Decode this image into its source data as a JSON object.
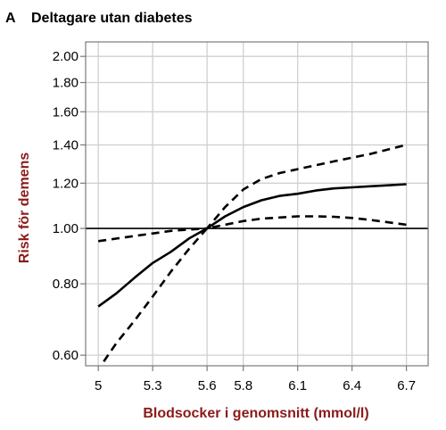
{
  "panel": {
    "letter": "A",
    "title": "Deltagare utan diabetes"
  },
  "colors": {
    "axis_label": "#8b1a1a",
    "line": "#000000",
    "grid": "#d0d0d0",
    "frame": "#7a7a7a"
  },
  "chart_data": {
    "type": "line",
    "title": "Deltagare utan diabetes",
    "xlabel": "Blodsocker i genomsnitt (mmol/l)",
    "ylabel": "Risk för demens",
    "xlim": [
      4.93,
      6.82
    ],
    "ylim": [
      0.575,
      2.12
    ],
    "y_scale": "log",
    "grid": true,
    "x_ticks": [
      5,
      5.3,
      5.6,
      5.8,
      6.1,
      6.4,
      6.7
    ],
    "x_tick_labels": [
      "5",
      "5.3",
      "5.6",
      "5.8",
      "6.1",
      "6.4",
      "6.7"
    ],
    "y_ticks": [
      0.6,
      0.8,
      1.0,
      1.2,
      1.4,
      1.6,
      1.8,
      2.0
    ],
    "y_tick_labels": [
      "0.60",
      "0.80",
      "1.00",
      "1.20",
      "1.40",
      "1.60",
      "1.80",
      "2.00"
    ],
    "reference_line": 1.0,
    "series": [
      {
        "role": "estimate",
        "style": "solid",
        "x": [
          5.0,
          5.1,
          5.2,
          5.3,
          5.4,
          5.5,
          5.6,
          5.7,
          5.8,
          5.9,
          6.0,
          6.1,
          6.2,
          6.3,
          6.4,
          6.5,
          6.6,
          6.7
        ],
        "y": [
          0.73,
          0.77,
          0.82,
          0.87,
          0.91,
          0.96,
          1.0,
          1.05,
          1.09,
          1.12,
          1.14,
          1.15,
          1.165,
          1.175,
          1.18,
          1.185,
          1.19,
          1.195
        ]
      },
      {
        "role": "ci_upper",
        "style": "dashed",
        "x": [
          5.0,
          5.1,
          5.2,
          5.3,
          5.4,
          5.5,
          5.6,
          5.7,
          5.8,
          5.9,
          6.0,
          6.1,
          6.2,
          6.3,
          6.4,
          6.5,
          6.6,
          6.7
        ],
        "y": [
          0.95,
          0.96,
          0.97,
          0.98,
          0.99,
          0.995,
          1.0,
          1.09,
          1.17,
          1.22,
          1.25,
          1.27,
          1.29,
          1.31,
          1.33,
          1.35,
          1.375,
          1.4
        ]
      },
      {
        "role": "ci_lower",
        "style": "dashed",
        "x": [
          5.03,
          5.1,
          5.2,
          5.3,
          5.4,
          5.5,
          5.6,
          5.7,
          5.8,
          5.9,
          6.0,
          6.1,
          6.2,
          6.3,
          6.4,
          6.5,
          6.6,
          6.7
        ],
        "y": [
          0.585,
          0.63,
          0.69,
          0.76,
          0.84,
          0.92,
          1.0,
          1.015,
          1.03,
          1.04,
          1.045,
          1.05,
          1.05,
          1.048,
          1.043,
          1.035,
          1.025,
          1.015
        ]
      }
    ]
  }
}
